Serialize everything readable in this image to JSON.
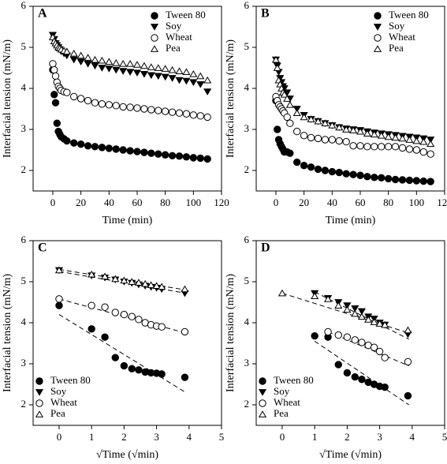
{
  "chart_data": [
    {
      "type": "scatter",
      "title": "A",
      "xlabel": "Time (min)",
      "ylabel": "Interfacial tension (mN/m)",
      "legend": "upper right",
      "xlim": [
        -14,
        120
      ],
      "xticks": [
        0,
        20,
        40,
        60,
        80,
        100,
        120
      ],
      "ylim": [
        1.5,
        6
      ],
      "yticks": [
        2,
        3,
        4,
        5,
        6
      ],
      "x": [
        0,
        1,
        2,
        3,
        4,
        5,
        6,
        8,
        10,
        15,
        20,
        25,
        30,
        35,
        40,
        45,
        50,
        55,
        60,
        65,
        70,
        75,
        80,
        85,
        90,
        95,
        100,
        105,
        110
      ],
      "series": [
        {
          "name": "Tween 80",
          "color": "#000000",
          "marker": "circle",
          "filled": true,
          "values": [
            4.45,
            3.85,
            3.65,
            3.15,
            2.95,
            2.88,
            2.82,
            2.77,
            2.72,
            2.67,
            2.64,
            2.6,
            2.58,
            2.56,
            2.54,
            2.52,
            2.5,
            2.48,
            2.46,
            2.44,
            2.42,
            2.4,
            2.38,
            2.36,
            2.35,
            2.33,
            2.31,
            2.3,
            2.28
          ]
        },
        {
          "name": "Soy",
          "color": "#000000",
          "marker": "triangle-down",
          "filled": true,
          "values": [
            5.3,
            5.2,
            5.1,
            5.05,
            5.0,
            4.95,
            4.9,
            4.85,
            4.8,
            4.7,
            4.65,
            4.6,
            4.55,
            4.5,
            4.48,
            4.45,
            4.42,
            4.4,
            4.38,
            4.35,
            4.32,
            4.3,
            4.28,
            4.25,
            4.2,
            4.18,
            4.15,
            4.1,
            3.92
          ]
        },
        {
          "name": "Wheat",
          "color": "#000000",
          "marker": "circle",
          "filled": false,
          "values": [
            4.6,
            4.45,
            4.3,
            4.15,
            4.05,
            4.0,
            3.95,
            3.92,
            3.9,
            3.8,
            3.75,
            3.7,
            3.65,
            3.62,
            3.6,
            3.58,
            3.55,
            3.54,
            3.52,
            3.5,
            3.48,
            3.46,
            3.44,
            3.42,
            3.4,
            3.38,
            3.35,
            3.33,
            3.3
          ]
        },
        {
          "name": "Pea",
          "color": "#000000",
          "marker": "triangle-up",
          "filled": false,
          "values": [
            5.25,
            5.15,
            5.1,
            5.05,
            5.0,
            4.98,
            4.95,
            4.92,
            4.9,
            4.85,
            4.8,
            4.75,
            4.7,
            4.68,
            4.65,
            4.62,
            4.6,
            4.6,
            4.58,
            4.55,
            4.52,
            4.5,
            4.48,
            4.45,
            4.42,
            4.4,
            4.35,
            4.3,
            4.2
          ]
        }
      ]
    },
    {
      "type": "scatter",
      "title": "B",
      "xlabel": "Time (min)",
      "ylabel": "Interfacial tension (mN/m)",
      "legend": "upper right",
      "xlim": [
        -14,
        120
      ],
      "xticks": [
        0,
        20,
        40,
        60,
        80,
        100,
        120
      ],
      "ylim": [
        1.5,
        6
      ],
      "yticks": [
        2,
        3,
        4,
        5,
        6
      ],
      "x": [
        0,
        1,
        2,
        3,
        4,
        5,
        6,
        8,
        10,
        15,
        20,
        25,
        30,
        35,
        40,
        45,
        50,
        55,
        60,
        65,
        70,
        75,
        80,
        85,
        90,
        95,
        100,
        105,
        110
      ],
      "series": [
        {
          "name": "Tween 80",
          "color": "#000000",
          "marker": "circle",
          "filled": true,
          "values": [
            3.7,
            3.0,
            2.75,
            2.65,
            2.58,
            2.52,
            2.45,
            2.45,
            2.42,
            2.2,
            2.12,
            2.08,
            2.03,
            2.0,
            1.97,
            1.95,
            1.92,
            1.9,
            1.88,
            1.85,
            1.83,
            1.82,
            1.8,
            1.78,
            1.77,
            1.76,
            1.75,
            1.74,
            1.73
          ]
        },
        {
          "name": "Soy",
          "color": "#000000",
          "marker": "triangle-down",
          "filled": true,
          "values": [
            4.7,
            4.55,
            4.4,
            4.25,
            4.15,
            4.05,
            4.0,
            3.9,
            3.75,
            3.5,
            3.35,
            3.25,
            3.2,
            3.15,
            3.1,
            3.05,
            3.02,
            3.0,
            2.98,
            2.95,
            2.92,
            2.9,
            2.88,
            2.86,
            2.84,
            2.82,
            2.8,
            2.78,
            2.75
          ]
        },
        {
          "name": "Wheat",
          "color": "#000000",
          "marker": "circle",
          "filled": false,
          "values": [
            3.8,
            3.7,
            3.6,
            3.55,
            3.5,
            3.45,
            3.4,
            3.3,
            3.15,
            2.95,
            2.85,
            2.8,
            2.78,
            2.75,
            2.75,
            2.72,
            2.7,
            2.6,
            2.6,
            2.58,
            2.58,
            2.58,
            2.58,
            2.58,
            2.55,
            2.52,
            2.5,
            2.45,
            2.4
          ]
        },
        {
          "name": "Pea",
          "color": "#000000",
          "marker": "triangle-up",
          "filled": false,
          "values": [
            4.7,
            4.5,
            4.2,
            4.1,
            4.0,
            3.9,
            3.85,
            3.75,
            3.6,
            3.4,
            3.3,
            3.25,
            3.2,
            3.15,
            3.1,
            3.05,
            3.0,
            2.98,
            2.95,
            2.9,
            2.88,
            2.85,
            2.82,
            2.8,
            2.78,
            2.75,
            2.72,
            2.7,
            2.65
          ]
        }
      ]
    },
    {
      "type": "scatter",
      "title": "C",
      "xlabel": "√Time (√min)",
      "ylabel": "Interfacial tension (mN/m)",
      "legend": "lower left",
      "xlim": [
        -0.8,
        5
      ],
      "xticks": [
        0,
        1,
        2,
        3,
        4,
        5
      ],
      "ylim": [
        1.5,
        6
      ],
      "yticks": [
        2,
        3,
        4,
        5,
        6
      ],
      "x": [
        0,
        1,
        1.41,
        1.73,
        2,
        2.24,
        2.45,
        2.65,
        2.83,
        3,
        3.16,
        3.87
      ],
      "series": [
        {
          "name": "Tween 80",
          "color": "#000000",
          "marker": "circle",
          "filled": true,
          "values": [
            4.42,
            3.85,
            3.65,
            3.15,
            2.95,
            2.88,
            2.85,
            2.8,
            2.78,
            2.77,
            2.75,
            2.67
          ],
          "fit_x": [
            0,
            3.9
          ],
          "fit_values": [
            4.2,
            2.3
          ]
        },
        {
          "name": "Soy",
          "color": "#000000",
          "marker": "triangle-down",
          "filled": true,
          "values": [
            5.28,
            5.15,
            5.1,
            5.05,
            5.0,
            4.97,
            4.93,
            4.9,
            4.87,
            4.85,
            4.82,
            4.72
          ],
          "fit_x": [
            0,
            3.9
          ],
          "fit_values": [
            5.25,
            4.72
          ]
        },
        {
          "name": "Wheat",
          "color": "#000000",
          "marker": "circle",
          "filled": false,
          "values": [
            4.58,
            4.42,
            4.38,
            4.25,
            4.2,
            4.15,
            4.08,
            4.0,
            3.95,
            3.92,
            3.9,
            3.78
          ],
          "fit_x": [
            0,
            3.9
          ],
          "fit_values": [
            4.58,
            3.75
          ]
        },
        {
          "name": "Pea",
          "color": "#000000",
          "marker": "triangle-up",
          "filled": false,
          "values": [
            5.28,
            5.18,
            5.13,
            5.07,
            5.03,
            5.0,
            4.98,
            4.95,
            4.92,
            4.9,
            4.88,
            4.82
          ],
          "fit_x": [
            0,
            3.9
          ],
          "fit_values": [
            5.3,
            4.8
          ]
        }
      ]
    },
    {
      "type": "scatter",
      "title": "D",
      "xlabel": "√Time (√min)",
      "ylabel": "Interfacial tension (mN/m)",
      "legend": "lower left",
      "xlim": [
        -0.8,
        5
      ],
      "xticks": [
        0,
        1,
        2,
        3,
        4,
        5
      ],
      "ylim": [
        1.5,
        6
      ],
      "yticks": [
        2,
        3,
        4,
        5,
        6
      ],
      "x": [
        0,
        1,
        1.41,
        1.73,
        2,
        2.24,
        2.45,
        2.65,
        2.83,
        3,
        3.16,
        3.87
      ],
      "series": [
        {
          "name": "Tween 80",
          "color": "#000000",
          "marker": "circle",
          "filled": true,
          "values": [
            null,
            3.68,
            3.65,
            2.98,
            2.78,
            2.68,
            2.62,
            2.55,
            2.5,
            2.45,
            2.43,
            2.22
          ],
          "fit_x": [
            1,
            3.9
          ],
          "fit_values": [
            3.55,
            2.0
          ]
        },
        {
          "name": "Soy",
          "color": "#000000",
          "marker": "triangle-down",
          "filled": true,
          "values": [
            null,
            4.72,
            4.6,
            4.5,
            4.42,
            4.35,
            4.28,
            4.15,
            4.1,
            4.0,
            3.95,
            3.72
          ],
          "fit_x": [
            1,
            3.9
          ],
          "fit_values": [
            4.75,
            3.6
          ]
        },
        {
          "name": "Wheat",
          "color": "#000000",
          "marker": "circle",
          "filled": false,
          "values": [
            null,
            null,
            3.78,
            3.7,
            3.65,
            3.58,
            3.52,
            3.45,
            3.4,
            3.3,
            3.15,
            3.05
          ],
          "fit_x": [
            1.41,
            3.9
          ],
          "fit_values": [
            3.78,
            2.95
          ]
        },
        {
          "name": "Pea",
          "color": "#000000",
          "marker": "triangle-up",
          "filled": false,
          "values": [
            4.72,
            4.65,
            4.58,
            4.42,
            4.32,
            4.22,
            4.15,
            4.08,
            4.02,
            3.98,
            3.95,
            3.82
          ],
          "fit_x": [
            0,
            3.9
          ],
          "fit_values": [
            4.72,
            3.75
          ]
        }
      ]
    }
  ]
}
